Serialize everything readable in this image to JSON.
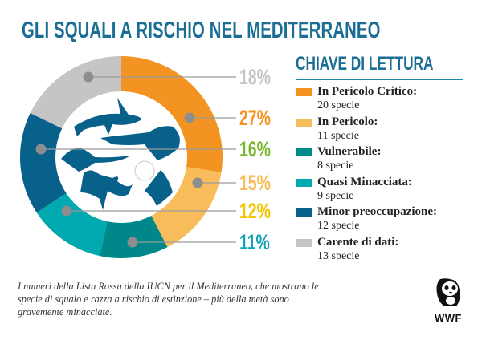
{
  "title": "GLI SQUALI A RISCHIO NEL MEDITERRANEO",
  "chart_data": {
    "type": "pie",
    "variant": "donut",
    "start": "top",
    "direction": "clockwise",
    "slices": [
      {
        "name": "In Pericolo Critico",
        "species": 20,
        "percent": 27,
        "label": "27%",
        "color": "#f39321",
        "label_color": "#f39321"
      },
      {
        "name": "In Pericolo",
        "species": 11,
        "percent": 15,
        "label": "15%",
        "color": "#f8bd5a",
        "label_color": "#f8bd5a"
      },
      {
        "name": "Vulnerabile",
        "species": 8,
        "percent": 11,
        "label": "11%",
        "color": "#00878a",
        "label_color": "#12a3b2"
      },
      {
        "name": "Quasi Minacciata",
        "species": 9,
        "percent": 12,
        "label": "12%",
        "color": "#00a8b0",
        "label_color": "#f2c500"
      },
      {
        "name": "Minor preoccupazione",
        "species": 12,
        "percent": 16,
        "label": "16%",
        "color": "#07618a",
        "label_color": "#7cb82f"
      },
      {
        "name": "Carente di dati",
        "species": 13,
        "percent": 18,
        "label": "18%",
        "color": "#c6c4c4",
        "label_color": "#c6c4c4"
      }
    ]
  },
  "legend": {
    "title": "CHIAVE DI LETTURA",
    "items": [
      {
        "label": "In Pericolo Critico:",
        "count": "20 specie",
        "color": "#f39321"
      },
      {
        "label": "In Pericolo:",
        "count": "11 specie",
        "color": "#f8bd5a"
      },
      {
        "label": "Vulnerabile:",
        "count": "8 specie",
        "color": "#00878a"
      },
      {
        "label": "Quasi Minacciata:",
        "count": "9 specie",
        "color": "#00a8b0"
      },
      {
        "label": "Minor preoccupazione:",
        "count": "12 specie",
        "color": "#07618a"
      },
      {
        "label": "Carente di dati:",
        "count": "13 specie",
        "color": "#c6c4c4"
      }
    ]
  },
  "note": "I numeri della Lista Rossa della IUCN per il Mediterraneo, che mostrano le specie di squalo e razza a rischio di estinzione – più della metà sono gravemente minacciate.",
  "logo": {
    "text": "WWF"
  }
}
